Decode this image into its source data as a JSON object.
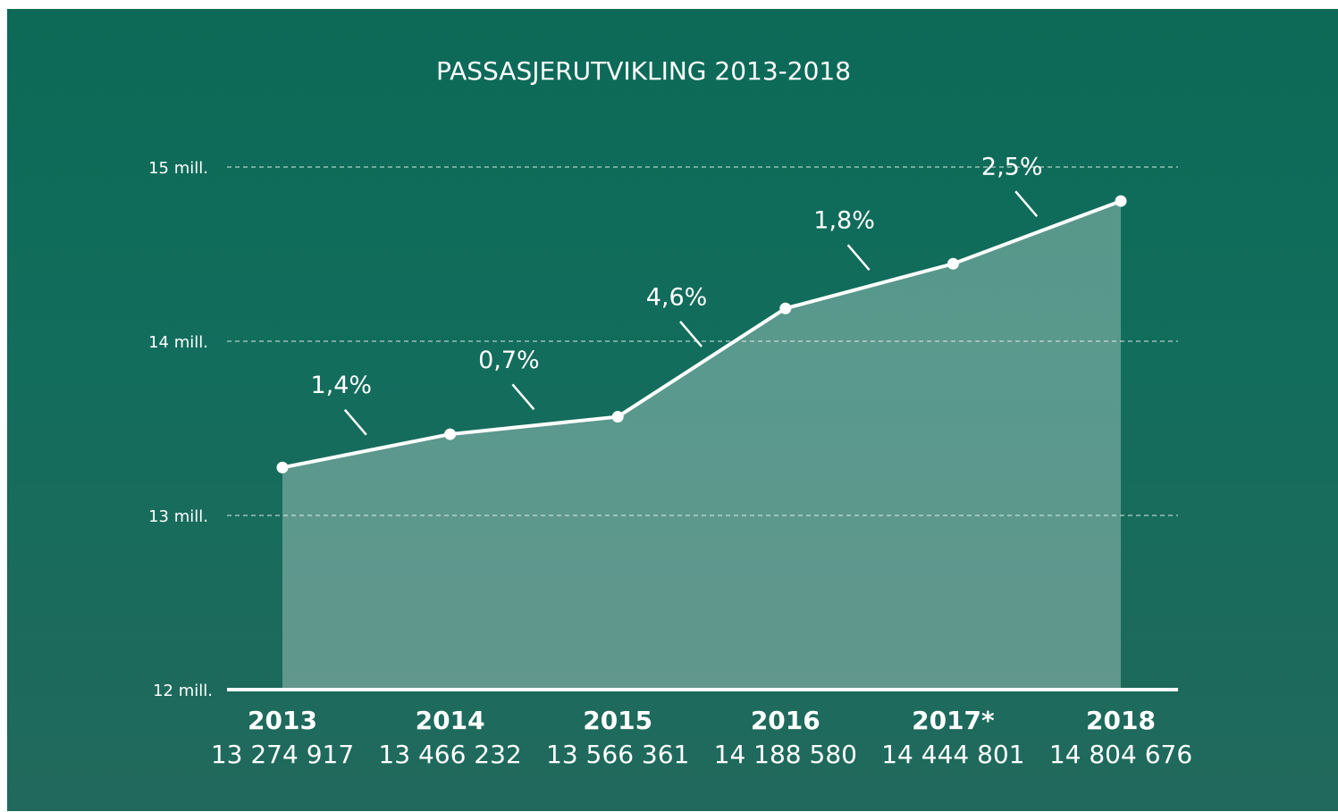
{
  "chart_data": {
    "type": "line",
    "title": "PASSASJERUTVIKLING 2013-2018",
    "categories": [
      "2013",
      "2014",
      "2015",
      "2016",
      "2017*",
      "2018"
    ],
    "values": [
      13274917,
      13466232,
      13566361,
      14188580,
      14444801,
      14804676
    ],
    "value_labels": [
      "13 274 917",
      "13 466 232",
      "13 566 361",
      "14 188 580",
      "14 444 801",
      "14 804 676"
    ],
    "color": "#ffffff",
    "ylim": [
      12000000,
      15000000
    ],
    "yticks": [
      {
        "value": 12000000,
        "label": "12 mill."
      },
      {
        "value": 13000000,
        "label": "13 mill."
      },
      {
        "value": 14000000,
        "label": "14 mill."
      },
      {
        "value": 15000000,
        "label": "15 mill."
      }
    ],
    "grid": true,
    "annotations": [
      {
        "value": 1.4,
        "label": "1,4%"
      },
      {
        "value": 0.7,
        "label": "0,7%"
      },
      {
        "value": 4.6,
        "label": "4,6%"
      },
      {
        "value": 1.8,
        "label": "1,8%"
      },
      {
        "value": 2.5,
        "label": "2,5%"
      }
    ]
  }
}
